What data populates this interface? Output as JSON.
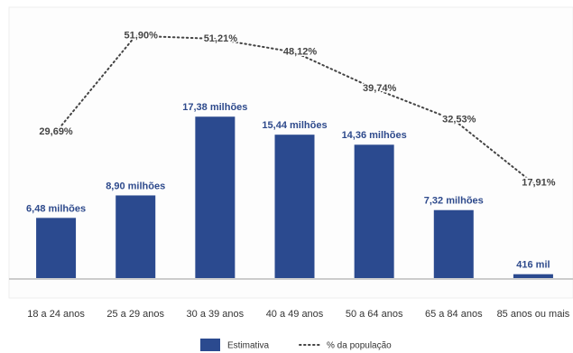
{
  "chart_data": {
    "type": "bar_line",
    "categories": [
      "18 a 24 anos",
      "25 a 29 anos",
      "30 a 39 anos",
      "40 a 49 anos",
      "50 a 64 anos",
      "65 a 84 anos",
      "85 anos ou mais"
    ],
    "series": [
      {
        "name": "Estimativa",
        "type": "bar",
        "color": "#2b4a8f",
        "values": [
          6.48,
          8.9,
          17.38,
          15.44,
          14.36,
          7.32,
          0.416
        ],
        "value_labels": [
          "6,48 milhões",
          "8,90 milhões",
          "17,38 milhões",
          "15,44 milhões",
          "14,36 milhões",
          "7,32 milhões",
          "416 mil"
        ]
      },
      {
        "name": "% da população",
        "type": "line",
        "axis": "y2",
        "color": "#444444",
        "values": [
          29.69,
          51.9,
          51.21,
          48.12,
          39.74,
          32.53,
          17.91
        ],
        "value_labels": [
          "29,69%",
          "51,90%",
          "51,21%",
          "48,12%",
          "39,74%",
          "32,53%",
          "17,91%"
        ]
      }
    ],
    "ylim": [
      0,
      28
    ],
    "y2lim": [
      -4,
      56
    ]
  }
}
